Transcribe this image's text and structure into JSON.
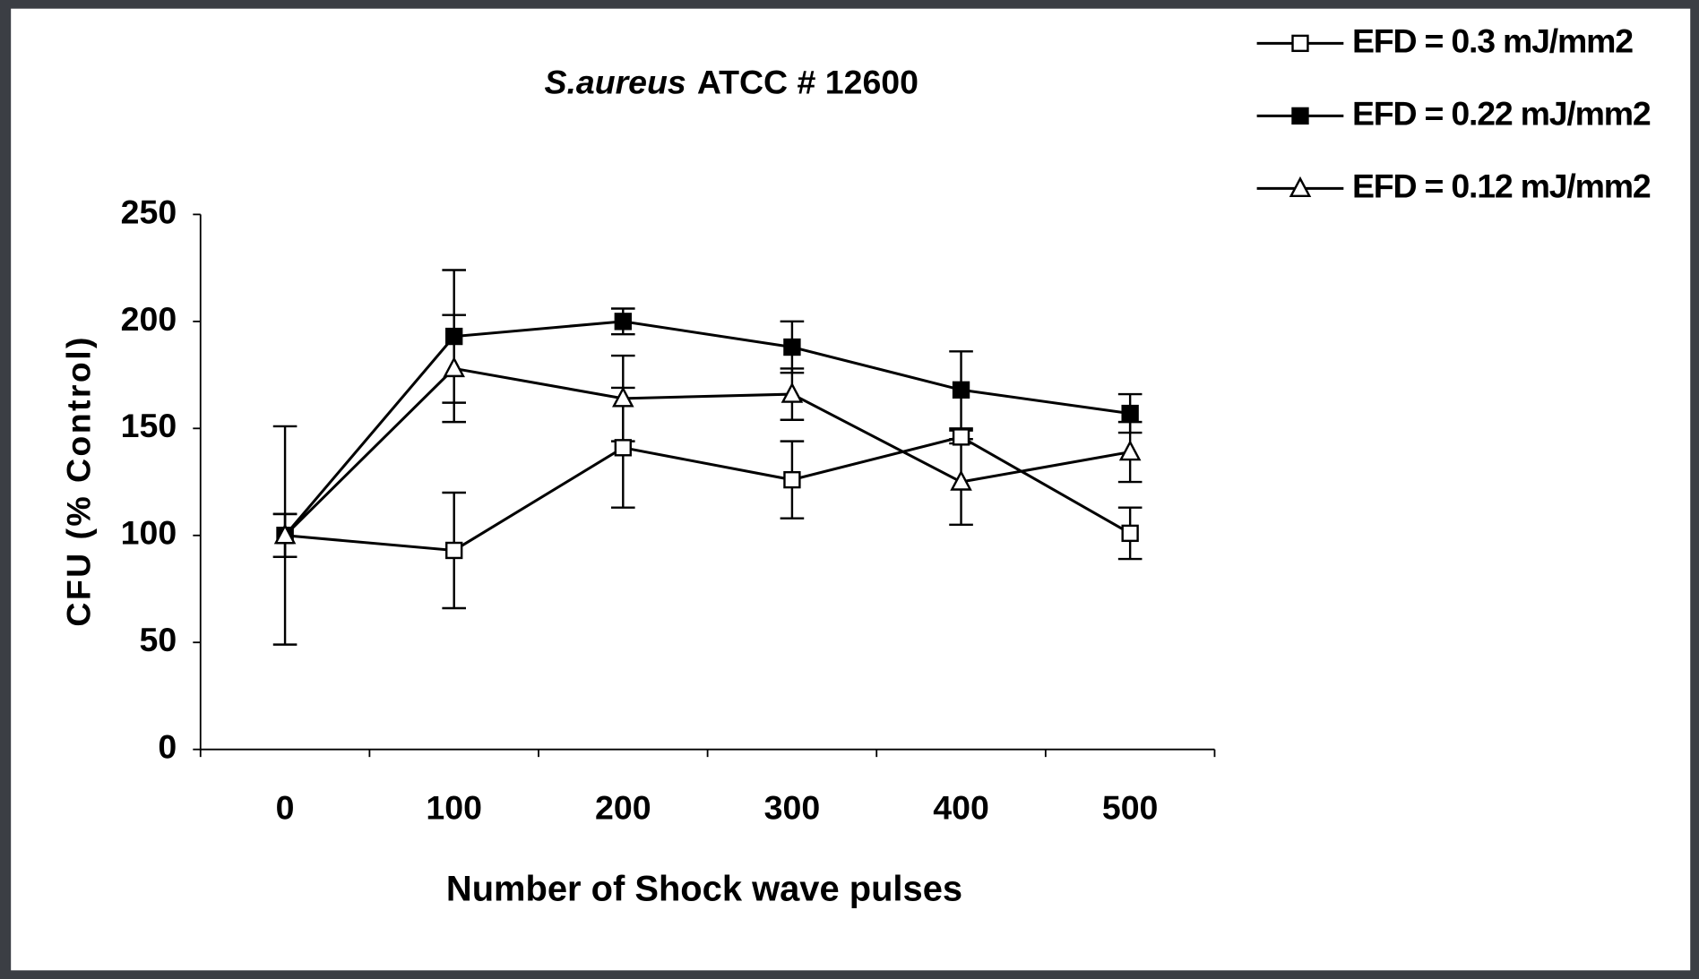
{
  "chart_data": {
    "type": "line",
    "title": [
      "S.aureus",
      "ATCC # 12600"
    ],
    "xlabel": "Number of Shock wave pulses",
    "ylabel": "CFU (% Control)",
    "categories": [
      "0",
      "100",
      "200",
      "300",
      "400",
      "500"
    ],
    "ylim": [
      0,
      250
    ],
    "yticks": [
      0,
      50,
      100,
      150,
      200,
      250
    ],
    "legend": "top-right",
    "series": [
      {
        "name": "EFD = 0.3 mJ/mm2",
        "color": "#000000",
        "marker": "square-open",
        "values": [
          100,
          93,
          141,
          126,
          146,
          101
        ],
        "errors": [
          51,
          27,
          28,
          18,
          3,
          12
        ]
      },
      {
        "name": "EFD = 0.22 mJ/mm2",
        "color": "#000000",
        "marker": "square-filled",
        "values": [
          100,
          193,
          200,
          188,
          168,
          157
        ],
        "errors": [
          10,
          31,
          6,
          12,
          18,
          9
        ]
      },
      {
        "name": "EFD = 0.12 mJ/mm2",
        "color": "#000000",
        "marker": "triangle-open",
        "values": [
          100,
          178,
          164,
          166,
          125,
          139
        ],
        "errors": [
          10,
          25,
          20,
          12,
          20,
          14
        ]
      }
    ]
  }
}
